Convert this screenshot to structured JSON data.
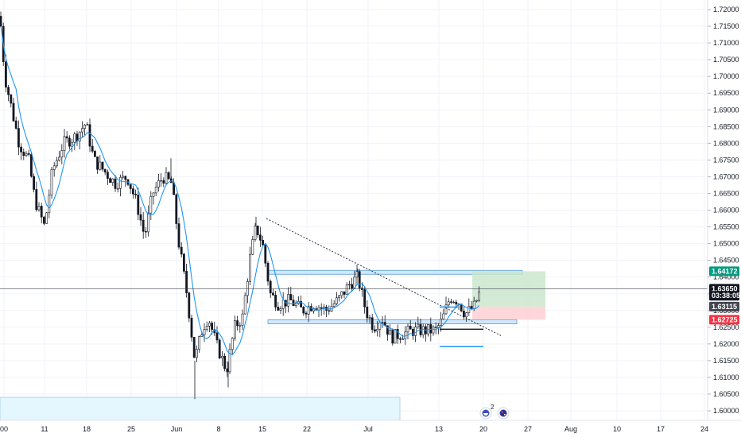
{
  "chart_data": {
    "type": "candlestick",
    "y_axis": {
      "range": [
        1.5975,
        1.7225
      ],
      "ticks": [
        "1.72000",
        "1.71500",
        "1.71000",
        "1.70500",
        "1.70000",
        "1.69500",
        "1.69000",
        "1.68500",
        "1.68000",
        "1.67500",
        "1.67000",
        "1.66500",
        "1.66000",
        "1.65500",
        "1.65000",
        "1.64500",
        "1.64000",
        "1.63500",
        "1.63000",
        "1.62500",
        "1.62000",
        "1.61500",
        "1.61000",
        "1.60500",
        "1.60000"
      ]
    },
    "x_axis": {
      "ticks": [
        "00",
        "11",
        "18",
        "25",
        "Jun",
        "8",
        "15",
        "22",
        "Jul",
        "13",
        "20",
        "27",
        "Aug",
        "10",
        "17",
        "24"
      ]
    },
    "price_tags": [
      {
        "label": "1.64172",
        "value": 1.64172,
        "color": "#089981",
        "text_color": "#ffffff"
      },
      {
        "label": "1.63650",
        "value": 1.6365,
        "color": "#131722",
        "text_color": "#ffffff"
      },
      {
        "label": "03:38:05",
        "value": 1.6344,
        "color": "#131722",
        "text_color": "#ffffff"
      },
      {
        "label": "1.63115",
        "value": 1.63115,
        "color": "#434651",
        "text_color": "#ffffff"
      },
      {
        "label": "1.62725",
        "value": 1.62725,
        "color": "#f23645",
        "text_color": "#ffffff"
      }
    ],
    "current_price": 1.6365,
    "zones": [
      {
        "x_from": "Jun 15",
        "x_to": "Jul 18",
        "y_from": 1.6412,
        "y_to": 1.642,
        "color": "#bbdefb"
      },
      {
        "x_from": "Jun 15",
        "x_to": "Jul 19",
        "y_from": 1.6263,
        "y_to": 1.6272,
        "color": "#bbdefb"
      },
      {
        "x_from": "May 4",
        "x_to": "Jul 6",
        "y_from": 1.5973,
        "y_to": 1.6042,
        "color": "#e1f5fe"
      }
    ],
    "position": {
      "entry": 1.63115,
      "target": 1.64172,
      "stop": 1.62725
    },
    "trendline": {
      "from": {
        "date": "Jun 15",
        "price": 1.6575
      },
      "to": {
        "date": "Jul 25",
        "price": 1.6225
      }
    },
    "levels": [
      {
        "date_from": "Jul 13",
        "date_to": "Jul 16",
        "price": 1.631,
        "color": "#2196f3"
      },
      {
        "date_from": "Jul 13",
        "date_to": "Jul 19",
        "price": 1.6244,
        "color": "#131722"
      },
      {
        "date_from": "Jul 13",
        "date_to": "Jul 19",
        "price": 1.6192,
        "color": "#2196f3"
      }
    ],
    "moving_average_color": "#2196f3",
    "candle_colors": {
      "up": "#ffffff",
      "down": "#131722",
      "outline": "#131722"
    }
  },
  "events": [
    {
      "label": "2",
      "icon": "calendar-event-icon"
    },
    {
      "label": "",
      "icon": "flag-event-icon"
    }
  ]
}
